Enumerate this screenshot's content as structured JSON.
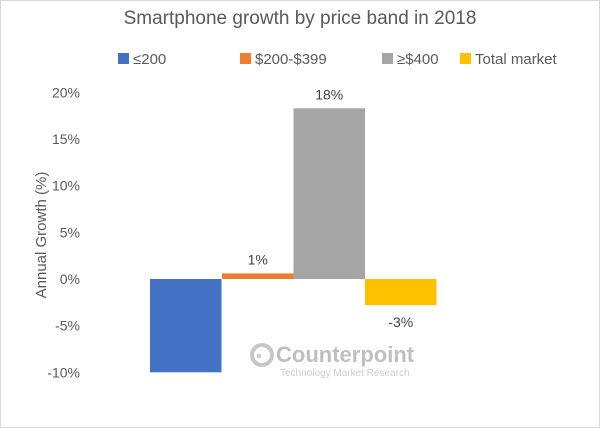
{
  "chart_data": {
    "type": "bar",
    "title": "Smartphone growth by price band in 2018",
    "xlabel": "",
    "ylabel": "Annual Growth (%)",
    "ylim": [
      -10,
      20
    ],
    "yticks": [
      "20%",
      "15%",
      "10%",
      "5%",
      "0%",
      "-5%",
      "-10%"
    ],
    "ytick_values": [
      20,
      15,
      10,
      5,
      0,
      -5,
      -10
    ],
    "grid": false,
    "legend_position": "top",
    "series": [
      {
        "name": "≤200",
        "value": -10,
        "label": "",
        "color": "#4472C4"
      },
      {
        "name": "$200-$399",
        "value": 0.6,
        "label": "1%",
        "color": "#ED7D31"
      },
      {
        "name": "≥$400",
        "value": 18.3,
        "label": "18%",
        "color": "#A5A5A5"
      },
      {
        "name": "Total market",
        "value": -2.8,
        "label": "-3%",
        "color": "#FFC000"
      }
    ]
  },
  "watermark": {
    "brand": "Counterpoint",
    "tagline": "Technology Market Research"
  }
}
